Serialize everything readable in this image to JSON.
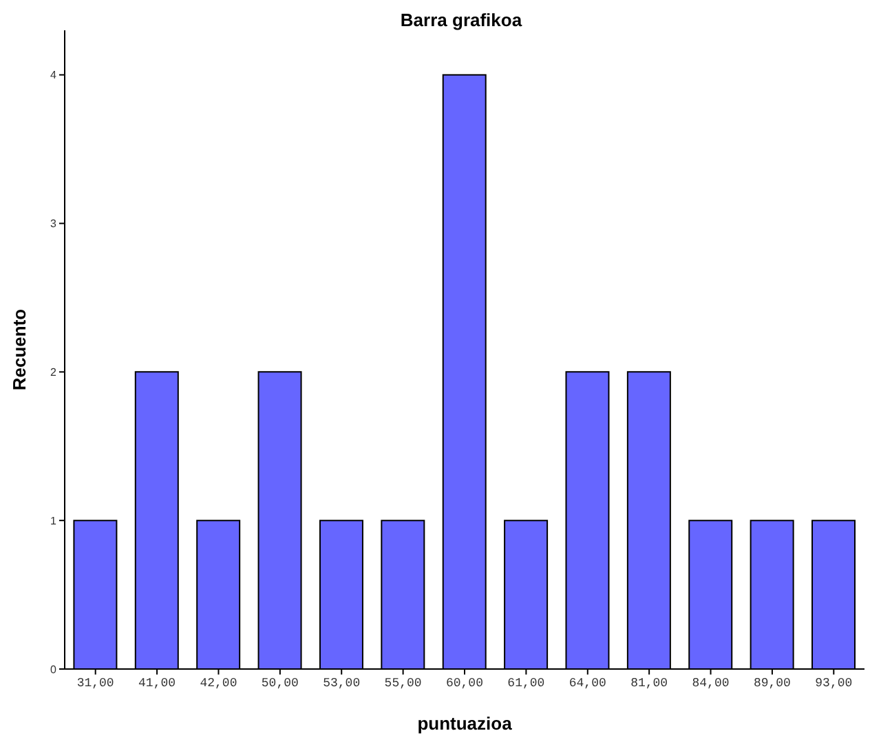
{
  "chart_data": {
    "type": "bar",
    "title": "Barra grafikoa",
    "xlabel": "puntuazioa",
    "ylabel": "Recuento",
    "categories": [
      "31,00",
      "41,00",
      "42,00",
      "50,00",
      "53,00",
      "55,00",
      "60,00",
      "61,00",
      "64,00",
      "81,00",
      "84,00",
      "89,00",
      "93,00"
    ],
    "values": [
      1,
      2,
      1,
      2,
      1,
      1,
      4,
      1,
      2,
      2,
      1,
      1,
      1
    ],
    "color": "#6666ff",
    "ylim": [
      0,
      4.3
    ],
    "yticks": [
      0,
      1,
      2,
      3,
      4
    ],
    "grid": false,
    "legend": false
  }
}
